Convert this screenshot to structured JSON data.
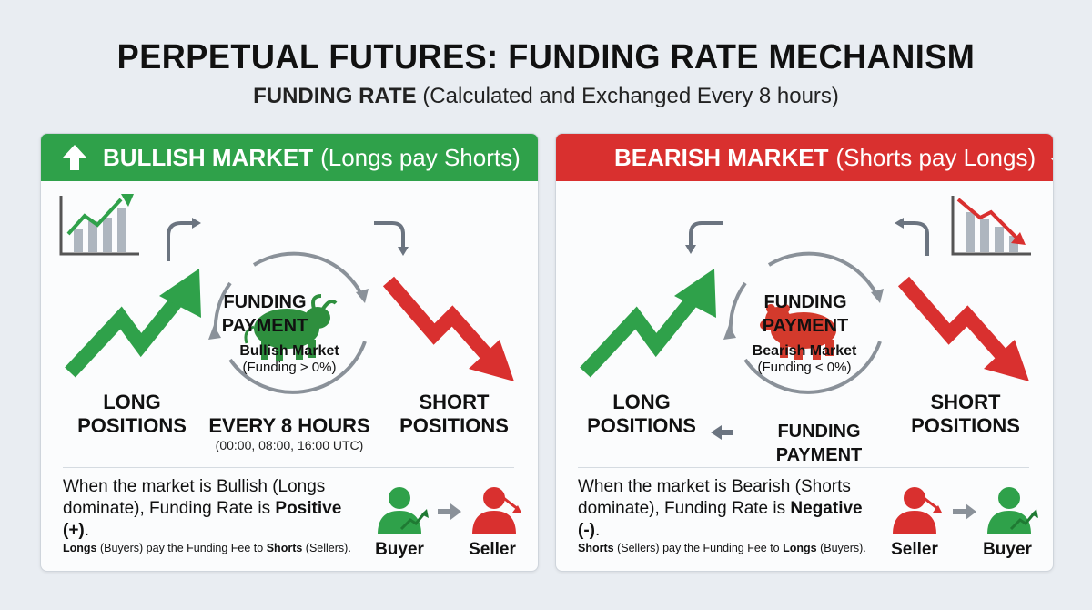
{
  "header": {
    "title": "PERPETUAL FUTURES: FUNDING RATE MECHANISM",
    "subtitle_bold": "FUNDING RATE",
    "subtitle_rest": "(Calculated and Exchanged Every 8 hours)"
  },
  "bullish": {
    "header_bold": "BULLISH MARKET",
    "header_rest": "(Longs pay Shorts)",
    "funding_payment": "FUNDING PAYMENT",
    "cycle_title": "Bullish Market",
    "cycle_sub": "(Funding > 0%)",
    "long_label_1": "LONG",
    "long_label_2": "POSITIONS",
    "short_label_1": "SHORT",
    "short_label_2": "POSITIONS",
    "every_label": "EVERY 8 HOURS",
    "times": "(00:00, 08:00, 16:00 UTC)",
    "desc_1": "When the market is Bullish (Longs dominate), Funding Rate is ",
    "desc_bold": "Positive (+)",
    "desc_end": ".",
    "foot_bold_1": "Longs",
    "foot_mid": " (Buyers) pay the Funding Fee to ",
    "foot_bold_2": "Shorts",
    "foot_end": " (Sellers).",
    "role_1": "Buyer",
    "role_2": "Seller",
    "accent": "#2fa14a"
  },
  "bearish": {
    "header_bold": "BEARISH MARKET",
    "header_rest": "(Shorts pay Longs)",
    "funding_payment_top": "FUNDING PAYMENT",
    "funding_payment_bottom": "FUNDING PAYMENT",
    "cycle_title": "Bearish Market",
    "cycle_sub": "(Funding < 0%)",
    "long_label_1": "LONG",
    "long_label_2": "POSITIONS",
    "short_label_1": "SHORT",
    "short_label_2": "POSITIONS",
    "desc_1": "When the market is Bearish (Shorts dominate), Funding Rate is ",
    "desc_bold": "Negative (-)",
    "desc_end": ".",
    "foot_bold_1": "Shorts",
    "foot_mid": " (Sellers) pay the Funding Fee to ",
    "foot_bold_2": "Longs",
    "foot_end": " (Buyers).",
    "role_1": "Seller",
    "role_2": "Buyer",
    "accent": "#d9302f"
  },
  "icons": [
    "arrow-up-icon",
    "arrow-down-icon",
    "rising-chart-icon",
    "falling-chart-icon",
    "bull-icon",
    "bear-icon",
    "person-icon",
    "cycle-arrows-icon"
  ]
}
